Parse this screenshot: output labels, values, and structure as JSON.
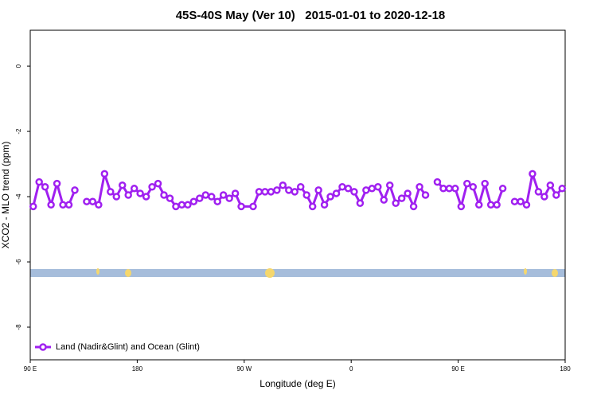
{
  "chart_data": {
    "type": "line",
    "title": "45S-40S May (Ver 10)   2015-01-01 to 2020-12-18",
    "x_label": "Longitude (deg E)",
    "y_label": "XCO2 - MLO trend (ppm)",
    "xlim": [
      90,
      540
    ],
    "xticks": [
      {
        "value": 90,
        "label": "90 E"
      },
      180,
      {
        "value": 270,
        "label": "90 W"
      },
      {
        "value": 360,
        "label": "0"
      },
      {
        "value": 450,
        "label": "90 E"
      },
      {
        "value": 540,
        "label": "180"
      }
    ],
    "ylim": [
      -9,
      1.1
    ],
    "yticks": [
      0,
      -2,
      -4,
      -6,
      -8
    ],
    "legend": "bottomleft",
    "x": [
      92.5,
      97.5,
      102.5,
      107.5,
      112.5,
      117.5,
      122.5,
      127.5,
      132.5,
      137.5,
      142.5,
      147.5,
      152.5,
      157.5,
      162.5,
      167.5,
      172.5,
      177.5,
      182.5,
      187.5,
      192.5,
      197.5,
      202.5,
      207.5,
      212.5,
      217.5,
      222.5,
      227.5,
      232.5,
      237.5,
      242.5,
      247.5,
      252.5,
      257.5,
      262.5,
      267.5,
      277.5,
      282.5,
      287.5,
      292.5,
      297.5,
      302.5,
      307.5,
      312.5,
      317.5,
      322.5,
      327.5,
      332.5,
      337.5,
      342.5,
      347.5,
      352.5,
      357.5,
      362.5,
      367.5,
      372.5,
      377.5,
      382.5,
      387.5,
      392.5,
      397.5,
      402.5,
      407.5,
      412.5,
      417.5,
      422.5,
      427.5,
      432.5,
      437.5,
      442.5,
      447.5,
      452.5,
      457.5,
      462.5,
      467.5,
      472.5,
      477.5,
      482.5,
      487.5,
      492.5,
      497.5,
      502.5,
      507.5,
      512.5,
      517.5,
      522.5,
      527.5,
      532.5,
      537.5
    ],
    "series": [
      {
        "name": "Land (Nadir&Glint) and Ocean (Glint)",
        "color": "#a020f0",
        "values": [
          -4.3,
          -3.55,
          -3.7,
          -4.25,
          -3.6,
          -4.25,
          -4.25,
          -3.8,
          null,
          -4.15,
          -4.15,
          -4.25,
          -3.3,
          -3.85,
          -4.0,
          -3.65,
          -3.95,
          -3.75,
          -3.9,
          -4.0,
          -3.7,
          -3.6,
          -3.95,
          -4.05,
          -4.3,
          -4.25,
          -4.25,
          -4.15,
          -4.05,
          -3.95,
          -4.0,
          -4.15,
          -3.95,
          -4.05,
          -3.9,
          -4.3,
          -4.3,
          -3.85,
          -3.85,
          -3.85,
          -3.8,
          -3.65,
          -3.8,
          -3.85,
          -3.7,
          -3.95,
          -4.3,
          -3.8,
          -4.25,
          -4.0,
          -3.9,
          -3.7,
          -3.75,
          -3.85,
          -4.2,
          -3.8,
          -3.75,
          -3.7,
          -4.1,
          -3.65,
          -4.2,
          -4.05,
          -3.9,
          -4.3,
          -3.7,
          -3.95,
          null,
          -3.55,
          -3.75,
          -3.75,
          -3.75,
          -4.3,
          -3.6,
          -3.7,
          -4.25,
          -3.6,
          -4.25,
          -4.25,
          -3.75,
          null,
          -4.15,
          -4.15,
          -4.25,
          -3.3,
          -3.85,
          -4.0,
          -3.65,
          -3.95,
          -3.75
        ]
      }
    ]
  }
}
